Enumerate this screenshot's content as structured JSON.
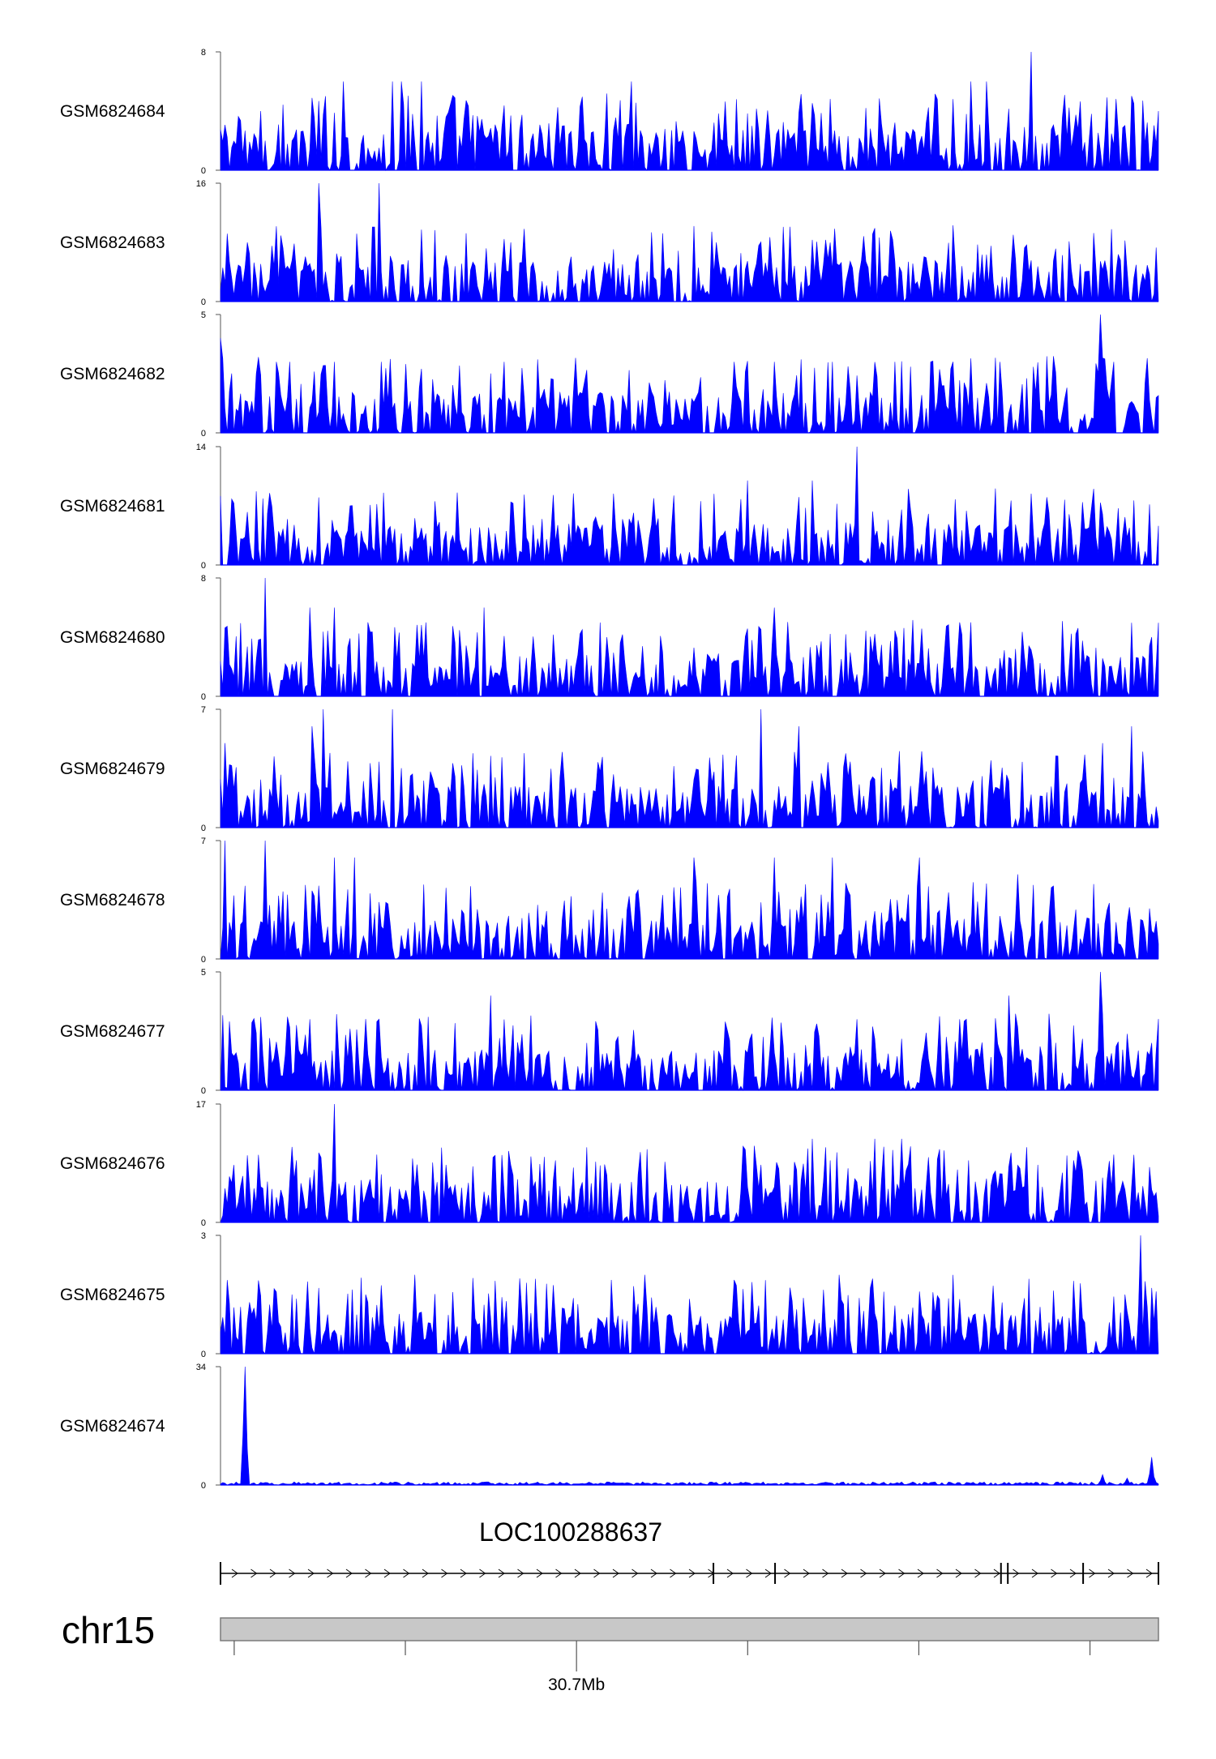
{
  "chart_data": {
    "type": "area",
    "color": "#0000ff",
    "x_range": [
      30.525,
      30.799
    ],
    "x_unit": "Mb",
    "tracks": [
      {
        "name": "GSM6824684",
        "ylim": [
          0,
          8
        ],
        "yticks": [
          "8",
          "0"
        ],
        "peaks": [
          [
            30.537,
            4.0
          ],
          [
            30.561,
            6.0
          ],
          [
            30.575,
            6.0
          ],
          [
            30.578,
            6.0
          ],
          [
            30.584,
            6.0
          ],
          [
            30.645,
            6.0
          ],
          [
            30.744,
            6.0
          ],
          [
            30.749,
            6.0
          ],
          [
            30.762,
            8.0
          ],
          [
            30.799,
            4.0
          ]
        ]
      },
      {
        "name": "GSM6824683",
        "ylim": [
          0,
          16
        ],
        "yticks": [
          "16",
          "0"
        ],
        "peaks": [
          [
            30.533,
            8.0
          ],
          [
            30.554,
            16.0
          ],
          [
            30.571,
            16.0
          ],
          [
            30.61,
            8.0
          ],
          [
            30.633,
            4.0
          ],
          [
            30.67,
            8.0
          ],
          [
            30.708,
            4.0
          ],
          [
            30.737,
            4.0
          ],
          [
            30.745,
            4.0
          ],
          [
            30.761,
            4.0
          ],
          [
            30.784,
            4.0
          ]
        ]
      },
      {
        "name": "GSM6824682",
        "ylim": [
          0,
          5
        ],
        "yticks": [
          "5",
          "0"
        ],
        "peaks": [
          [
            30.525,
            4.0
          ],
          [
            30.541,
            3.0
          ],
          [
            30.545,
            3.0
          ],
          [
            30.558,
            3.0
          ],
          [
            30.572,
            3.0
          ],
          [
            30.608,
            3.0
          ],
          [
            30.626,
            1.0
          ],
          [
            30.675,
            3.0
          ],
          [
            30.687,
            3.0
          ],
          [
            30.704,
            3.0
          ],
          [
            30.722,
            3.0
          ],
          [
            30.739,
            3.0
          ],
          [
            30.753,
            3.0
          ],
          [
            30.782,
            5.0
          ],
          [
            30.786,
            3.0
          ]
        ]
      },
      {
        "name": "GSM6824681",
        "ylim": [
          0,
          14
        ],
        "yticks": [
          "14",
          "0"
        ],
        "peaks": [
          [
            30.554,
            8.0
          ],
          [
            30.563,
            7.0
          ],
          [
            30.679,
            10.0
          ],
          [
            30.698,
            10.0
          ],
          [
            30.711,
            14.0
          ],
          [
            30.726,
            9.0
          ],
          [
            30.773,
            6.0
          ],
          [
            30.783,
            6.0
          ]
        ]
      },
      {
        "name": "GSM6824680",
        "ylim": [
          0,
          8
        ],
        "yticks": [
          "8",
          "0"
        ],
        "peaks": [
          [
            30.538,
            8.0
          ],
          [
            30.551,
            6.0
          ],
          [
            30.558,
            6.0
          ],
          [
            30.568,
            5.0
          ],
          [
            30.602,
            6.0
          ],
          [
            30.638,
            4.0
          ],
          [
            30.687,
            6.0
          ],
          [
            30.741,
            5.0
          ],
          [
            30.744,
            5.0
          ],
          [
            30.797,
            4.0
          ]
        ]
      },
      {
        "name": "GSM6824679",
        "ylim": [
          0,
          7
        ],
        "yticks": [
          "7",
          "0"
        ],
        "peaks": [
          [
            30.526,
            5.0
          ],
          [
            30.552,
            6.0
          ],
          [
            30.555,
            7.0
          ],
          [
            30.575,
            7.0
          ],
          [
            30.683,
            7.0
          ],
          [
            30.694,
            6.0
          ],
          [
            30.783,
            5.0
          ],
          [
            30.791,
            6.0
          ]
        ]
      },
      {
        "name": "GSM6824678",
        "ylim": [
          0,
          7
        ],
        "yticks": [
          "7",
          "0"
        ],
        "peaks": [
          [
            30.526,
            7.0
          ],
          [
            30.538,
            7.0
          ],
          [
            30.558,
            6.0
          ],
          [
            30.564,
            6.0
          ],
          [
            30.663,
            6.0
          ],
          [
            30.687,
            6.0
          ],
          [
            30.704,
            6.0
          ],
          [
            30.729,
            6.0
          ],
          [
            30.758,
            5.0
          ]
        ]
      },
      {
        "name": "GSM6824677",
        "ylim": [
          0,
          5
        ],
        "yticks": [
          "5",
          "0"
        ],
        "peaks": [
          [
            30.551,
            3.0
          ],
          [
            30.571,
            3.0
          ],
          [
            30.604,
            4.0
          ],
          [
            30.632,
            2.0
          ],
          [
            30.711,
            3.0
          ],
          [
            30.741,
            3.0
          ],
          [
            30.743,
            3.0
          ],
          [
            30.755,
            4.0
          ],
          [
            30.782,
            5.0
          ],
          [
            30.797,
            2.0
          ]
        ]
      },
      {
        "name": "GSM6824676",
        "ylim": [
          0,
          17
        ],
        "yticks": [
          "17",
          "0"
        ],
        "peaks": [
          [
            30.554,
            10.0
          ],
          [
            30.558,
            17.0
          ],
          [
            30.681,
            11.0
          ],
          [
            30.698,
            12.0
          ],
          [
            30.716,
            12.0
          ],
          [
            30.724,
            12.0
          ],
          [
            30.755,
            8.0
          ]
        ]
      },
      {
        "name": "GSM6824675",
        "ylim": [
          0,
          3
        ],
        "yticks": [
          "3",
          "0"
        ],
        "peaks": [
          [
            30.546,
            1.5
          ],
          [
            30.582,
            2.0
          ],
          [
            30.649,
            2.0
          ],
          [
            30.706,
            2.0
          ],
          [
            30.739,
            2.0
          ],
          [
            30.794,
            3.0
          ],
          [
            30.789,
            1.5
          ]
        ]
      },
      {
        "name": "GSM6824674",
        "ylim": [
          0,
          34
        ],
        "yticks": [
          "34",
          "0"
        ],
        "peaks": [
          [
            30.532,
            34.0
          ],
          [
            30.783,
            3.0
          ],
          [
            30.79,
            2.0
          ],
          [
            30.797,
            8.0
          ]
        ]
      }
    ],
    "gene": {
      "name": "LOC100288637",
      "start": 30.525,
      "end": 30.799,
      "exons": [
        30.669,
        30.687,
        30.753,
        30.755,
        30.777,
        30.799
      ]
    },
    "ideogram": {
      "chromosome": "chr15",
      "axis_label": "30.7Mb",
      "axis_label_position": 30.629,
      "ticks": [
        30.529,
        30.579,
        30.629,
        30.679,
        30.729,
        30.779
      ]
    }
  }
}
